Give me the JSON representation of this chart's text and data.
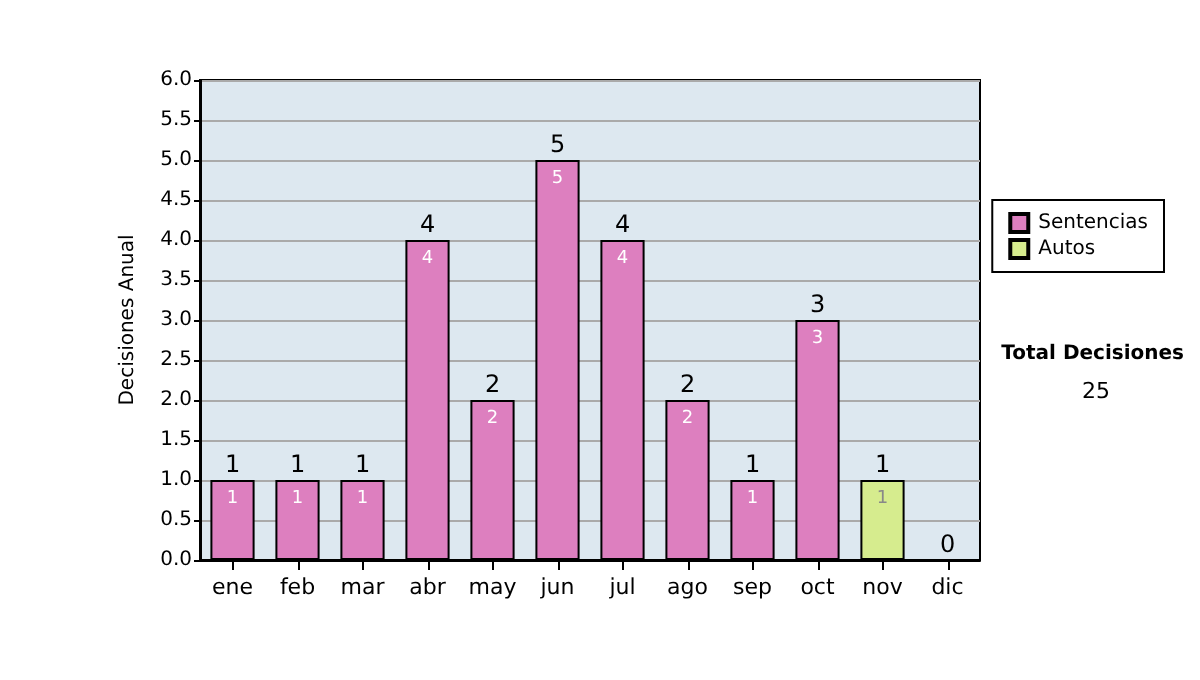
{
  "chart_data": {
    "type": "bar",
    "ylabel": "Decisiones Anual",
    "categories": [
      "ene",
      "feb",
      "mar",
      "abr",
      "may",
      "jun",
      "jul",
      "ago",
      "sep",
      "oct",
      "nov",
      "dic"
    ],
    "series": [
      {
        "name": "Sentencias",
        "color": "#dd7fbf",
        "values": [
          1,
          1,
          1,
          4,
          2,
          5,
          4,
          2,
          1,
          3,
          0,
          0
        ],
        "value_labels": [
          "1",
          "1",
          "1",
          "4",
          "2",
          "5",
          "4",
          "2",
          "1",
          "3",
          null,
          null
        ]
      },
      {
        "name": "Autos",
        "color": "#d6ec8e",
        "values": [
          0,
          0,
          0,
          0,
          0,
          0,
          0,
          0,
          0,
          0,
          1,
          0
        ],
        "value_labels": [
          null,
          null,
          null,
          null,
          null,
          null,
          null,
          null,
          null,
          null,
          "1",
          null
        ]
      }
    ],
    "stacked": true,
    "totals": [
      "1",
      "1",
      "1",
      "4",
      "2",
      "5",
      "4",
      "2",
      "1",
      "3",
      "1",
      "0"
    ],
    "ylim": [
      0,
      6
    ],
    "yticks": [
      {
        "value": 0,
        "label": "0.0"
      },
      {
        "value": 0.5,
        "label": "0.5"
      },
      {
        "value": 1,
        "label": "1.0"
      },
      {
        "value": 1.5,
        "label": "1.5"
      },
      {
        "value": 2,
        "label": "2.0"
      },
      {
        "value": 2.5,
        "label": "2.5"
      },
      {
        "value": 3,
        "label": "3.0"
      },
      {
        "value": 3.5,
        "label": "3.5"
      },
      {
        "value": 4,
        "label": "4.0"
      },
      {
        "value": 4.5,
        "label": "4.5"
      },
      {
        "value": 5,
        "label": "5.0"
      },
      {
        "value": 5.5,
        "label": "5.5"
      },
      {
        "value": 6,
        "label": "6.0"
      }
    ],
    "grid": "y",
    "legend": "right",
    "annotations": [
      "Total Decisiones",
      "25"
    ]
  }
}
